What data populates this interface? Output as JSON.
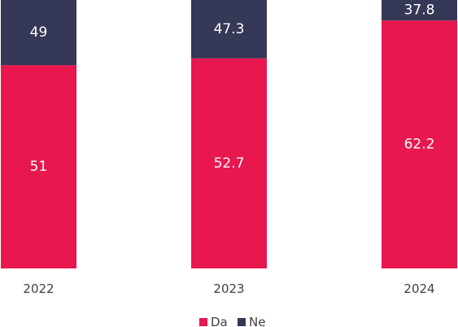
{
  "chart_data": {
    "type": "bar",
    "stacked": true,
    "percent_stacked": true,
    "categories": [
      "2022",
      "2023",
      "2024"
    ],
    "series": [
      {
        "name": "Da",
        "values": [
          51,
          52.7,
          62.2
        ],
        "color": "#e8174e"
      },
      {
        "name": "Ne",
        "values": [
          49,
          47.3,
          37.8
        ],
        "color": "#353856"
      }
    ],
    "ylim": [
      0,
      100
    ],
    "data_labels": true,
    "grid": false,
    "legend_position": "bottom"
  }
}
